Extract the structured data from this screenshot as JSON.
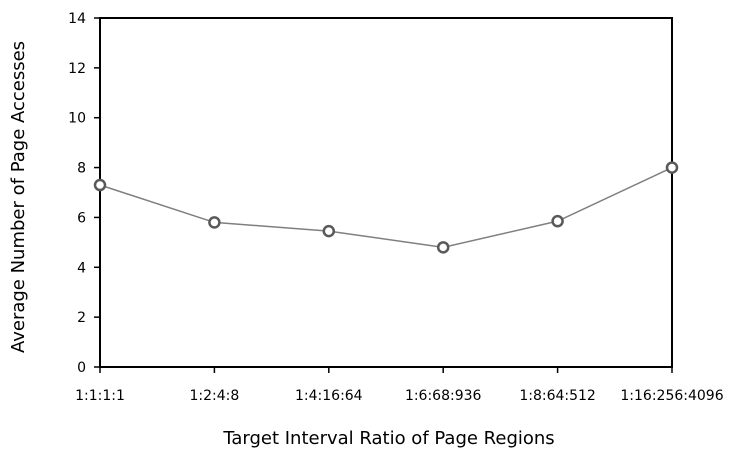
{
  "chart_data": {
    "type": "line",
    "title": "",
    "xlabel": "Target Interval Ratio of Page Regions",
    "ylabel": "Average Number of Page Accesses",
    "categories": [
      "1:1:1:1",
      "1:2:4:8",
      "1:4:16:64",
      "1:6:68:936",
      "1:8:64:512",
      "1:16:256:4096"
    ],
    "series": [
      {
        "values": [
          7.3,
          5.8,
          5.45,
          4.8,
          5.85,
          8.0
        ]
      }
    ],
    "ylim": [
      0,
      14
    ],
    "yticks": [
      0,
      2,
      4,
      6,
      8,
      10,
      12,
      14
    ],
    "grid": false,
    "legend": "none",
    "colors": {
      "line": "#7f7f7f",
      "marker_stroke": "#595959",
      "axis": "#000000"
    }
  }
}
